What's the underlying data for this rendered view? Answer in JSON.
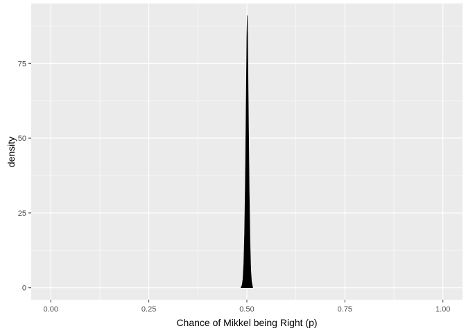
{
  "chart_data": {
    "type": "area",
    "title": "",
    "xlabel": "Chance of Mikkel being Right (p)",
    "ylabel": "density",
    "xlim": [
      -0.05,
      1.05
    ],
    "ylim": [
      -4,
      95
    ],
    "x_ticks": [
      0.0,
      0.25,
      0.5,
      0.75,
      1.0
    ],
    "x_tick_labels": [
      "0.00",
      "0.25",
      "0.50",
      "0.75",
      "1.00"
    ],
    "y_ticks": [
      0,
      25,
      50,
      75
    ],
    "y_tick_labels": [
      "0",
      "25",
      "50",
      "75"
    ],
    "grid": true,
    "colors": {
      "panel_bg": "#ebebeb",
      "grid_major": "#ffffff",
      "fill": "#000000"
    },
    "series": [
      {
        "x": [
          0.485,
          0.488,
          0.49,
          0.492,
          0.494,
          0.496,
          0.498,
          0.5,
          0.501,
          0.502,
          0.504,
          0.506,
          0.508,
          0.51,
          0.512,
          0.515
        ],
        "values": [
          0,
          1,
          3,
          8,
          18,
          35,
          60,
          85,
          91,
          84,
          58,
          33,
          16,
          6,
          2,
          0
        ]
      }
    ]
  }
}
